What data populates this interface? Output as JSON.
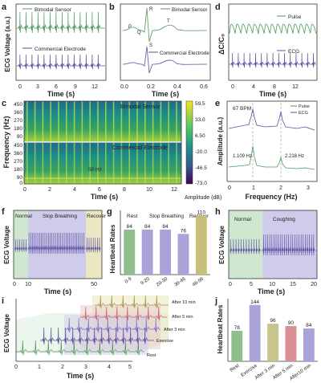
{
  "colors": {
    "green": "#4e9a5d",
    "purple": "#5a4fa0",
    "light_green": "#cfe6cf",
    "light_purple": "#cfcbea",
    "light_yellow": "#ece7c3",
    "olive": "#b3a95a",
    "bar_green": "#8fbf8c",
    "bar_purple": "#a9a3d9",
    "bar_tan": "#c9bf7a",
    "bar_pink": "#d98f95",
    "bar_olive": "#c7c48c"
  },
  "panels": {
    "a": {
      "letter": "a",
      "ylabel": "ECG Voltage (a.u.)",
      "xlabel": "Time (s)",
      "xticks": [
        "0",
        "3",
        "6",
        "9",
        "12"
      ],
      "legend": [
        "Bimodal Sensor",
        "Commercial Electrode"
      ]
    },
    "b": {
      "letter": "b",
      "xlabel": "Time (s)",
      "xticks": [
        "0.0",
        "0.2",
        "0.4",
        "0.6"
      ],
      "legend": [
        "Bimodal Sensor",
        "Commercial Electrode"
      ],
      "wave_labels": [
        "P",
        "Q",
        "R",
        "S",
        "T"
      ]
    },
    "d": {
      "letter": "d",
      "ylabel": "ΔC/C₀",
      "xlabel": "Time (s)",
      "xticks": [
        "0",
        "4",
        "8",
        "12"
      ],
      "legend": [
        "Pulse",
        "ECG"
      ]
    },
    "c": {
      "letter": "c",
      "ylabel": "Frequency (Hz)",
      "xlabel": "Time (s)",
      "xticks": [
        "0",
        "2",
        "4",
        "6",
        "8",
        "10",
        "12"
      ],
      "yticks": [
        "450",
        "360",
        "270",
        "180",
        "90",
        "0"
      ],
      "labels": [
        "Bimodal Sensor",
        "Commercial Electrode",
        "50 Hz"
      ],
      "colorbar_ticks": [
        "59.5",
        "33.0",
        "6.50",
        "-20.0",
        "-46.5",
        "-73.0"
      ],
      "colorbar_label": "Amplitude (dB)"
    },
    "e": {
      "letter": "e",
      "ylabel": "Amplitude (a.u.)",
      "xlabel": "Frequency (Hz)",
      "xticks": [
        "0",
        "1",
        "2",
        "3"
      ],
      "annotations": [
        "67 BPM",
        "1.109 Hz",
        "2.218 Hz"
      ],
      "legend": [
        "Pulse",
        "ECG"
      ]
    },
    "f": {
      "letter": "f",
      "ylabel": "ECG Voltage",
      "xlabel": "Time (s)",
      "xticks": [
        "0",
        "10",
        "50"
      ],
      "phases": [
        "Normal",
        "Stop Breathing",
        "Recover"
      ]
    },
    "h": {
      "letter": "h",
      "ylabel": "ECG Voltage",
      "xlabel": "Time (s)",
      "xticks": [
        "0",
        "5",
        "10",
        "15",
        "20"
      ],
      "phases": [
        "Normal",
        "Coughing"
      ]
    },
    "i": {
      "letter": "i",
      "ylabel": "ECG Voltage",
      "xlabel": "Time (s)",
      "xticks": [
        "0",
        "1",
        "2",
        "3",
        "4",
        "5"
      ],
      "traces": [
        "Rest",
        "Exercise",
        "After 3 min",
        "After 5 min",
        "After 10 min"
      ]
    }
  },
  "chart_data": [
    {
      "panel": "g",
      "type": "bar",
      "title": "",
      "ylabel": "Heartbeat Rates",
      "phases": [
        "Rest",
        "Stop Breathing",
        "Recover"
      ],
      "categories": [
        "0-9",
        "9-20",
        "20-30",
        "30-46",
        "46-56"
      ],
      "values": [
        84,
        84,
        84,
        76,
        110
      ],
      "ylim": [
        0,
        120
      ]
    },
    {
      "panel": "j",
      "type": "bar",
      "title": "",
      "ylabel": "Heartbeat Rates",
      "categories": [
        "Rest",
        "Exercise",
        "After 3 min",
        "After 5 min",
        "After10 min"
      ],
      "values": [
        78,
        144,
        96,
        90,
        84
      ],
      "ylim": [
        0,
        160
      ]
    }
  ]
}
